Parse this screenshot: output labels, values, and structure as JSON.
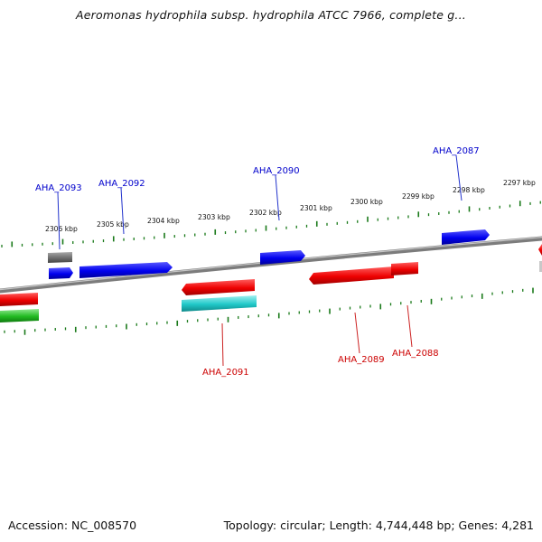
{
  "title": "Aeromonas hydrophila subsp. hydrophila ATCC 7966, complete g...",
  "footer": {
    "accession": "Accession: NC_008570",
    "summary": "Topology: circular; Length: 4,744,448 bp; Genes: 4,281"
  },
  "colors": {
    "backbone": "#808080",
    "tick": "#1a7a1a",
    "forward_label": "#0000cc",
    "reverse_label": "#cc0000",
    "blue": "#0000ee",
    "red": "#ee0000",
    "cyan": "#20c8c8",
    "green": "#22bb22",
    "gray": "#707070"
  },
  "ruler_labels": [
    "2306 kbp",
    "2305 kbp",
    "2304 kbp",
    "2303 kbp",
    "2302 kbp",
    "2301 kbp",
    "2300 kbp",
    "2299 kbp",
    "2298 kbp",
    "2297 kbp"
  ],
  "gene_labels": {
    "top": [
      "AHA_2093",
      "AHA_2092",
      "AHA_2090",
      "AHA_2087"
    ],
    "bottom": [
      "AHA_2091",
      "AHA_2089",
      "AHA_2088"
    ]
  }
}
